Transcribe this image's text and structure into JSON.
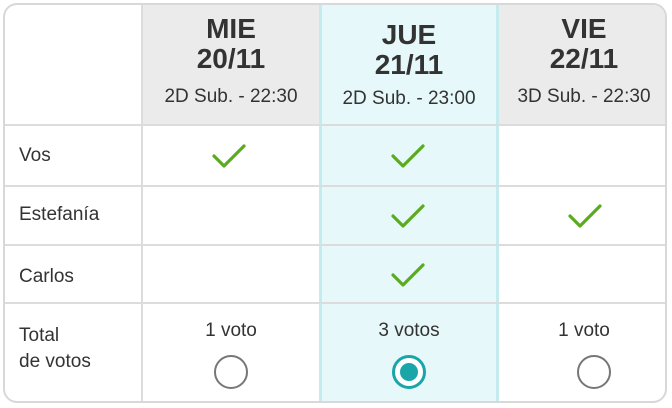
{
  "columns": [
    {
      "day": "MIE",
      "date": "20/11",
      "showtime": "2D Sub. - 22:30",
      "votes_label": "1 voto",
      "selected": false
    },
    {
      "day": "JUE",
      "date": "21/11",
      "showtime": "2D Sub. - 23:00",
      "votes_label": "3 votos",
      "selected": true
    },
    {
      "day": "VIE",
      "date": "22/11",
      "showtime": "3D Sub. - 22:30",
      "votes_label": "1 voto",
      "selected": false
    }
  ],
  "rows": [
    {
      "name": "Vos",
      "checks": [
        true,
        true,
        false
      ]
    },
    {
      "name": "Estefanía",
      "checks": [
        false,
        true,
        true
      ]
    },
    {
      "name": "Carlos",
      "checks": [
        false,
        true,
        false
      ]
    }
  ],
  "totals": {
    "label_line1": "Total",
    "label_line2": "de votos"
  },
  "colors": {
    "check": "#5aac1f",
    "accent": "#1aa6a8",
    "highlight": "#e6f8f9",
    "header": "#ebebeb"
  },
  "icons": {
    "check": "checkmark-icon",
    "radio_empty": "radio-unselected-icon",
    "radio_selected": "radio-selected-icon"
  }
}
